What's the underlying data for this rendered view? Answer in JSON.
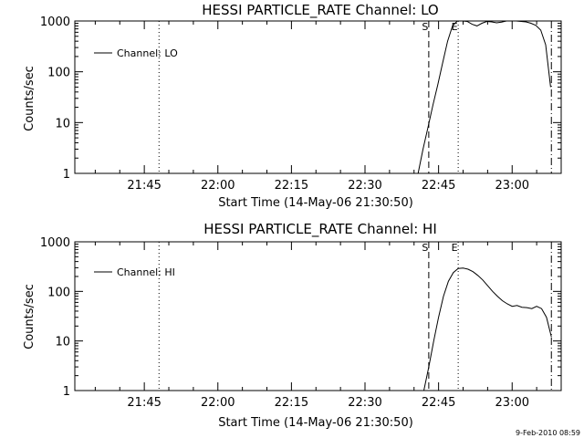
{
  "footer_timestamp": "9-Feb-2010 08:59",
  "chart_data": [
    {
      "type": "line",
      "title": "HESSI PARTICLE_RATE Channel: LO",
      "xlabel": "Start Time (14-May-06 21:30:50)",
      "ylabel": "Counts/sec",
      "yscale": "log",
      "ylim": [
        1,
        1000
      ],
      "xlim": [
        "21:30:50",
        "23:10:00"
      ],
      "y_ticks": [
        1,
        10,
        100,
        1000
      ],
      "y_tick_labels": [
        "1",
        "10",
        "100",
        "1000"
      ],
      "x_ticks": [
        "21:45",
        "22:00",
        "22:15",
        "22:30",
        "22:45",
        "23:00"
      ],
      "x_tick_labels": [
        "21:45",
        "22:00",
        "22:15",
        "22:30",
        "22:45",
        "23:00"
      ],
      "legend": {
        "position": "top-left",
        "entries": [
          "Channel: LO"
        ]
      },
      "markers": [
        {
          "style": "dotted",
          "x": "21:48:00",
          "label": ""
        },
        {
          "style": "dashed",
          "x": "22:43:00",
          "label": "S"
        },
        {
          "style": "dotted",
          "x": "22:49:00",
          "label": "E"
        },
        {
          "style": "dashdot",
          "x": "23:08:00",
          "label": ""
        }
      ],
      "series": [
        {
          "name": "Channel: LO",
          "x": [
            "22:40:50",
            "22:41:50",
            "22:42:50",
            "22:43:50",
            "22:44:50",
            "22:45:50",
            "22:46:50",
            "22:47:50",
            "22:48:50",
            "22:49:50",
            "22:50:50",
            "22:51:50",
            "22:52:50",
            "22:53:50",
            "22:54:50",
            "22:55:50",
            "22:56:50",
            "22:57:50",
            "22:58:50",
            "22:59:50",
            "23:00:50",
            "23:01:50",
            "23:02:50",
            "23:03:50",
            "23:04:50",
            "23:05:50",
            "23:06:50",
            "23:07:50"
          ],
          "y": [
            1,
            3,
            8,
            22,
            55,
            150,
            400,
            800,
            1000,
            1050,
            980,
            860,
            800,
            900,
            980,
            960,
            920,
            950,
            1000,
            1010,
            1000,
            980,
            960,
            900,
            820,
            660,
            340,
            50
          ]
        }
      ]
    },
    {
      "type": "line",
      "title": "HESSI PARTICLE_RATE Channel: HI",
      "xlabel": "Start Time (14-May-06 21:30:50)",
      "ylabel": "Counts/sec",
      "yscale": "log",
      "ylim": [
        1,
        1000
      ],
      "xlim": [
        "21:30:50",
        "23:10:00"
      ],
      "y_ticks": [
        1,
        10,
        100,
        1000
      ],
      "y_tick_labels": [
        "1",
        "10",
        "100",
        "1000"
      ],
      "x_ticks": [
        "21:45",
        "22:00",
        "22:15",
        "22:30",
        "22:45",
        "23:00"
      ],
      "x_tick_labels": [
        "21:45",
        "22:00",
        "22:15",
        "22:30",
        "22:45",
        "23:00"
      ],
      "legend": {
        "position": "top-left",
        "entries": [
          "Channel: HI"
        ]
      },
      "markers": [
        {
          "style": "dotted",
          "x": "21:48:00",
          "label": ""
        },
        {
          "style": "dashed",
          "x": "22:43:00",
          "label": "S"
        },
        {
          "style": "dotted",
          "x": "22:49:00",
          "label": "E"
        },
        {
          "style": "dashdot",
          "x": "23:08:00",
          "label": ""
        }
      ],
      "series": [
        {
          "name": "Channel: HI",
          "x": [
            "22:42:00",
            "22:43:00",
            "22:44:00",
            "22:45:00",
            "22:46:00",
            "22:47:00",
            "22:48:00",
            "22:49:00",
            "22:50:00",
            "22:51:00",
            "22:52:00",
            "22:53:00",
            "22:54:00",
            "22:55:00",
            "22:56:00",
            "22:57:00",
            "22:58:00",
            "22:59:00",
            "23:00:00",
            "23:01:00",
            "23:02:00",
            "23:03:00",
            "23:04:00",
            "23:05:00",
            "23:06:00",
            "23:07:00",
            "23:08:00"
          ],
          "y": [
            1,
            3,
            10,
            30,
            80,
            160,
            240,
            290,
            295,
            280,
            250,
            210,
            170,
            130,
            100,
            80,
            65,
            56,
            50,
            52,
            48,
            47,
            45,
            50,
            45,
            30,
            12
          ]
        }
      ]
    }
  ]
}
